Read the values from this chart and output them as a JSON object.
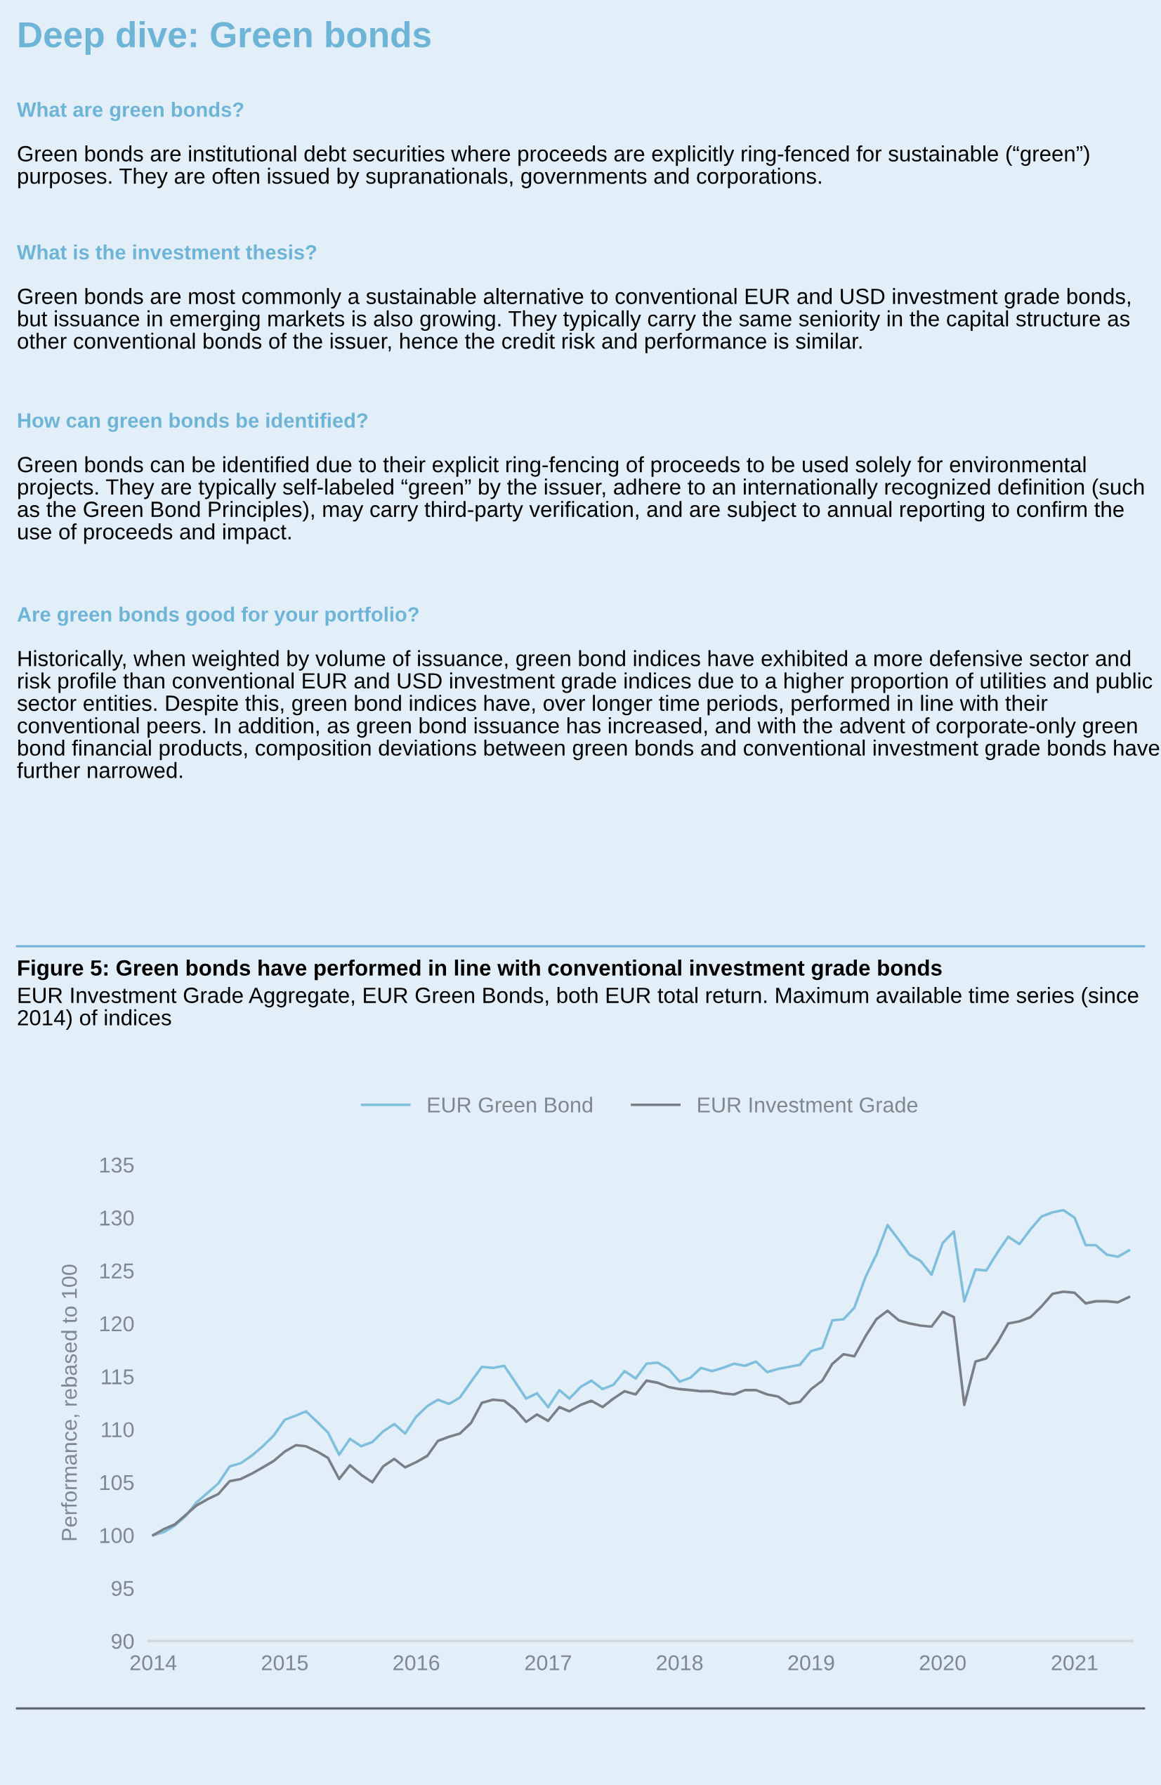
{
  "chart_data": {
    "type": "line",
    "title": "Figure 5: Green bonds have performed in line with conventional investment grade bonds",
    "subtitle": "EUR Investment Grade Aggregate, EUR Green Bonds, both EUR total return. Maximum available time series (since 2014) of indices",
    "annotations": [
      "Deep dive: Green bonds",
      "What are green bonds?",
      "Green bonds are institutional debt securities where proceeds are explicitly ring-fenced for sustainable (“green”) purposes. They are often issued by supranationals, governments and corporations.",
      "What is the investment thesis?",
      "Green bonds are most commonly a sustainable alternative to conventional EUR and USD investment grade bonds, but issuance in emerging markets is also growing. They typically carry the same seniority in the capital structure as other conventional bonds of the issuer, hence the credit risk and performance is similar.",
      "How can green bonds be identified?",
      "Green bonds can be identified due to their explicit ring-fencing of proceeds to be used solely for environmental projects. They are typically self-labeled “green” by the issuer, adhere to an internationally recognized definition (such as the Green Bond Principles), may carry third-party verification, and are subject to annual reporting to confirm the use of proceeds and impact.",
      "Are green bonds good for your portfolio?",
      "Historically, when weighted by volume of issuance, green bond indices have exhibited a more defensive sector and risk profile than conventional EUR and USD investment grade indices due to a higher proportion of utilities and public sector entities. Despite this, green bond indices have, over longer time periods, performed in line with their conventional peers. In addition, as green bond issuance has increased, and with the advent of corporate-only green bond financial products, composition deviations between green bonds and conventional investment grade bonds have further narrowed."
    ],
    "ylabel": "Performance, rebased to 100",
    "x": [
      "2014-01",
      "2014-02",
      "2014-03",
      "2014-04",
      "2014-05",
      "2014-06",
      "2014-07",
      "2014-08",
      "2014-09",
      "2014-10",
      "2014-11",
      "2014-12",
      "2015-01",
      "2015-02",
      "2015-03",
      "2015-04",
      "2015-05",
      "2015-06",
      "2015-07",
      "2015-08",
      "2015-09",
      "2015-10",
      "2015-11",
      "2015-12",
      "2016-01",
      "2016-02",
      "2016-03",
      "2016-04",
      "2016-05",
      "2016-06",
      "2016-07",
      "2016-08",
      "2016-09",
      "2016-10",
      "2016-11",
      "2016-12",
      "2017-01",
      "2017-02",
      "2017-03",
      "2017-04",
      "2017-05",
      "2017-06",
      "2017-07",
      "2017-08",
      "2017-09",
      "2017-10",
      "2017-11",
      "2017-12",
      "2018-01",
      "2018-02",
      "2018-03",
      "2018-04",
      "2018-05",
      "2018-06",
      "2018-07",
      "2018-08",
      "2018-09",
      "2018-10",
      "2018-11",
      "2018-12",
      "2019-01",
      "2019-02",
      "2019-03",
      "2019-04",
      "2019-05",
      "2019-06",
      "2019-07",
      "2019-08",
      "2019-09",
      "2019-10",
      "2019-11",
      "2019-12",
      "2020-01",
      "2020-02",
      "2020-03",
      "2020-04",
      "2020-05",
      "2020-06",
      "2020-07",
      "2020-08",
      "2020-09",
      "2020-10",
      "2020-11",
      "2020-12",
      "2021-01",
      "2021-02",
      "2021-03",
      "2021-04",
      "2021-05",
      "2021-06"
    ],
    "series": [
      {
        "name": "EUR Green Bond",
        "color": "#7fbfdc",
        "values": [
          100.0,
          100.3,
          100.9,
          101.8,
          103.1,
          104.0,
          104.9,
          106.5,
          106.8,
          107.5,
          108.4,
          109.4,
          110.9,
          111.3,
          111.7,
          110.7,
          109.7,
          107.6,
          109.1,
          108.4,
          108.8,
          109.8,
          110.5,
          109.6,
          111.2,
          112.2,
          112.8,
          112.4,
          113.0,
          114.5,
          115.9,
          115.8,
          116.0,
          114.5,
          112.9,
          113.4,
          112.1,
          113.7,
          112.9,
          114.0,
          114.6,
          113.8,
          114.2,
          115.5,
          114.8,
          116.2,
          116.3,
          115.7,
          114.5,
          114.9,
          115.8,
          115.5,
          115.8,
          116.2,
          116.0,
          116.4,
          115.4,
          115.7,
          115.9,
          116.1,
          117.4,
          117.7,
          120.3,
          120.4,
          121.5,
          124.4,
          126.5,
          129.3,
          127.9,
          126.5,
          125.9,
          124.6,
          127.6,
          128.7,
          122.1,
          125.1,
          125.0,
          126.7,
          128.2,
          127.5,
          128.9,
          130.1,
          130.5,
          130.7,
          130.0,
          127.4,
          127.4,
          126.5,
          126.3,
          126.9
        ]
      },
      {
        "name": "EUR Investment Grade",
        "color": "#7a7f87",
        "values": [
          100.0,
          100.6,
          101.0,
          101.9,
          102.8,
          103.4,
          103.9,
          105.1,
          105.3,
          105.8,
          106.4,
          107.0,
          107.9,
          108.5,
          108.4,
          107.9,
          107.3,
          105.3,
          106.6,
          105.7,
          105.0,
          106.5,
          107.2,
          106.4,
          106.9,
          107.5,
          108.9,
          109.3,
          109.6,
          110.6,
          112.5,
          112.8,
          112.7,
          111.9,
          110.7,
          111.4,
          110.8,
          112.1,
          111.7,
          112.3,
          112.7,
          112.1,
          112.9,
          113.6,
          113.3,
          114.6,
          114.4,
          114.0,
          113.8,
          113.7,
          113.6,
          113.6,
          113.4,
          113.3,
          113.7,
          113.7,
          113.3,
          113.1,
          112.4,
          112.6,
          113.8,
          114.6,
          116.2,
          117.1,
          116.9,
          118.8,
          120.4,
          121.2,
          120.3,
          120.0,
          119.8,
          119.7,
          121.1,
          120.6,
          112.3,
          116.4,
          116.7,
          118.2,
          120.0,
          120.2,
          120.6,
          121.6,
          122.8,
          123.0,
          122.9,
          121.9,
          122.1,
          122.1,
          122.0,
          122.5
        ]
      }
    ],
    "xlim": [
      "2013-12-18",
      "2021-06-10"
    ],
    "xticks": [
      "2014",
      "2015",
      "2016",
      "2017",
      "2018",
      "2019",
      "2020",
      "2021"
    ],
    "ylim": [
      90,
      135
    ],
    "yticks": [
      90,
      95,
      100,
      105,
      110,
      115,
      120,
      125,
      130,
      135
    ],
    "grid": false,
    "legend": "top",
    "marker": "none",
    "line_style": "solid"
  }
}
